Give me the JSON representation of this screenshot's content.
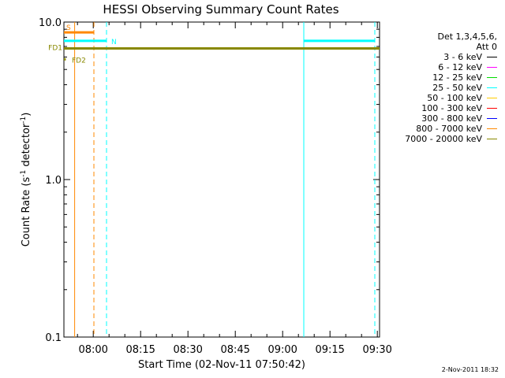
{
  "chart_data": {
    "type": "line",
    "title": "HESSI Observing Summary Count Rates",
    "xlabel": "Start Time (02-Nov-11 07:50:42)",
    "ylabel_main": "Count Rate (s",
    "ylabel_sup1": "-1",
    "ylabel_mid": " detector",
    "ylabel_sup2": "-1",
    "ylabel_end": ")",
    "yscale": "log",
    "ylim": [
      0.1,
      10.0
    ],
    "xlim_minutes": [
      0,
      100
    ],
    "x_tick_labels": [
      "08:00",
      "08:15",
      "08:30",
      "08:45",
      "09:00",
      "09:15",
      "09:30"
    ],
    "x_tick_minutes": [
      9.3,
      24.3,
      39.3,
      54.3,
      69.3,
      84.3,
      99.3
    ],
    "y_tick_labels": [
      "10.0",
      "1.0",
      "0.1"
    ],
    "y_tick_values": [
      10.0,
      1.0,
      0.1
    ],
    "legend": {
      "head1": "Det 1,3,4,5,6,",
      "head2": "Att 0",
      "entries": [
        {
          "label": "3 - 6 keV",
          "color": "#000000"
        },
        {
          "label": "6 - 12 keV",
          "color": "#ff00ff"
        },
        {
          "label": "12 - 25 keV",
          "color": "#00dd00"
        },
        {
          "label": "25 - 50 keV",
          "color": "#00ffff"
        },
        {
          "label": "50 - 100 keV",
          "color": "#ffcc00"
        },
        {
          "label": "100 - 300 keV",
          "color": "#ff0000"
        },
        {
          "label": "300 - 800 keV",
          "color": "#0000ff"
        },
        {
          "label": "800 - 7000 keV",
          "color": "#ff8800"
        },
        {
          "label": "7000 - 20000 keV",
          "color": "#888800"
        }
      ]
    },
    "flags": [
      {
        "label": "S",
        "color": "#ff8800",
        "x0": 0,
        "x1": 9.5,
        "y": 8.6
      },
      {
        "label": "N",
        "color": "#00ffff",
        "x0": 0,
        "x1": 13.5,
        "y": 7.6
      },
      {
        "label": "FD1",
        "color": "#888800",
        "x0": 0,
        "x1": 100,
        "y": 6.8
      },
      {
        "label": "FD2",
        "color": "#888800",
        "x0": 0,
        "x1": 0.6,
        "y": 5.8
      }
    ],
    "extra_segments": [
      {
        "color": "#00ffff",
        "x0": 76,
        "x1": 98.5,
        "y": 7.6
      }
    ],
    "vlines": [
      {
        "x": 3.4,
        "color": "#ff8800",
        "dash": false
      },
      {
        "x": 9.5,
        "color": "#ff8800",
        "dash": true
      },
      {
        "x": 13.5,
        "color": "#00ffff",
        "dash": true
      },
      {
        "x": 76,
        "color": "#00ffff",
        "dash": false
      },
      {
        "x": 98.5,
        "color": "#00ffff",
        "dash": true
      }
    ]
  },
  "footer_date": "2-Nov-2011 18:32"
}
